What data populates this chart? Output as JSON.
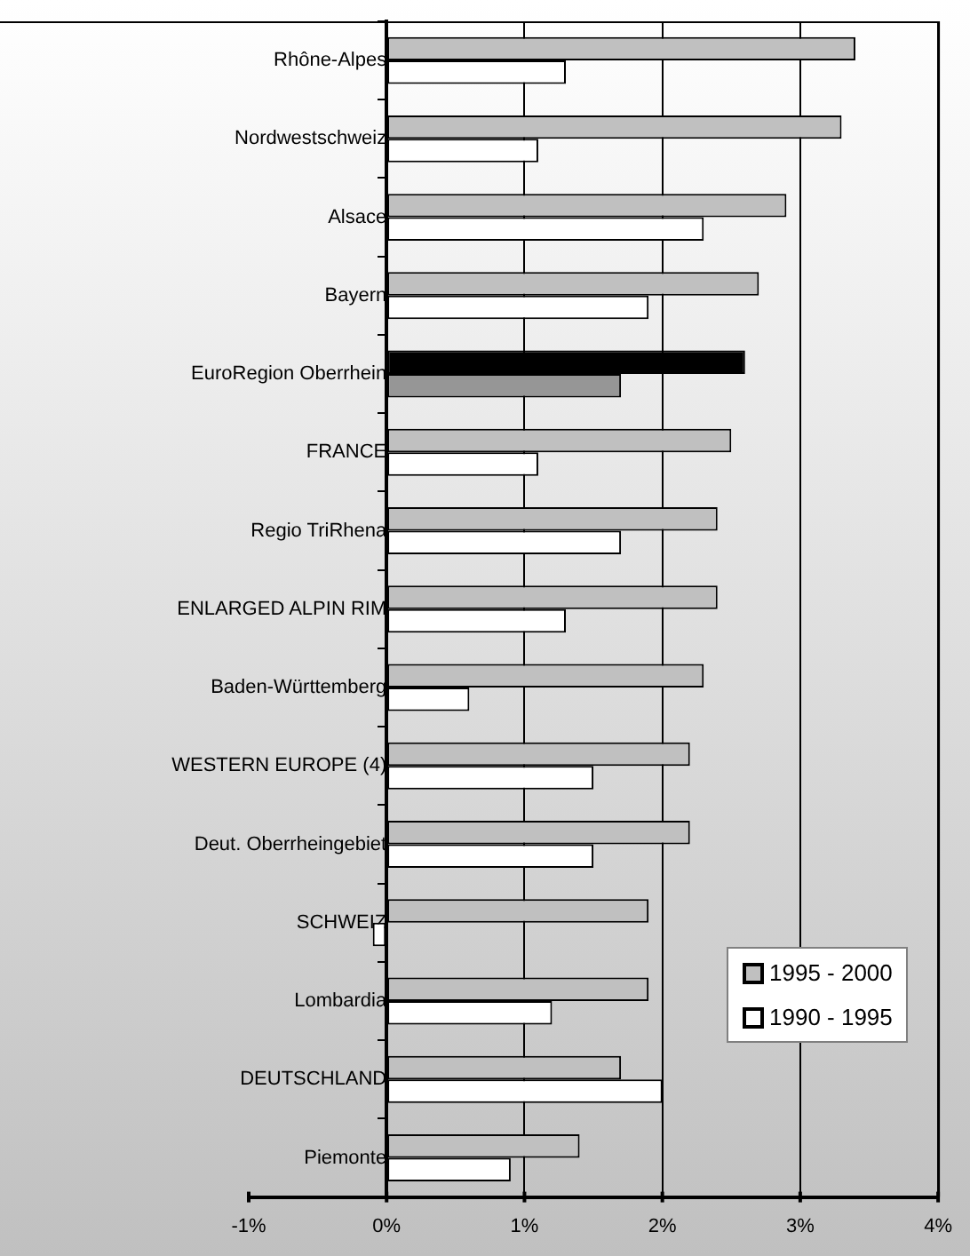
{
  "chart_data": {
    "type": "bar",
    "orientation": "horizontal",
    "categories": [
      "Rhône-Alpes",
      "Nordwestschweiz",
      "Alsace",
      "Bayern",
      "EuroRegion Oberrhein",
      "FRANCE",
      "Regio TriRhena",
      "ENLARGED ALPIN RIM",
      "Baden-Württemberg",
      "WESTERN EUROPE (4)",
      "Deut. Oberrheingebiet",
      "SCHWEIZ",
      "Lombardia",
      "DEUTSCHLAND",
      "Piemonte"
    ],
    "series": [
      {
        "name": "1995 - 2000",
        "color": "#c0c0c0",
        "colors": [
          "#c0c0c0",
          "#c0c0c0",
          "#c0c0c0",
          "#c0c0c0",
          "#000000",
          "#c0c0c0",
          "#c0c0c0",
          "#c0c0c0",
          "#c0c0c0",
          "#c0c0c0",
          "#c0c0c0",
          "#c0c0c0",
          "#c0c0c0",
          "#c0c0c0",
          "#c0c0c0"
        ],
        "values": [
          3.4,
          3.3,
          2.9,
          2.7,
          2.6,
          2.5,
          2.4,
          2.4,
          2.3,
          2.2,
          2.2,
          1.9,
          1.9,
          1.7,
          1.4
        ]
      },
      {
        "name": "1990 - 1995",
        "color": "#ffffff",
        "colors": [
          "#ffffff",
          "#ffffff",
          "#ffffff",
          "#ffffff",
          "#969696",
          "#ffffff",
          "#ffffff",
          "#ffffff",
          "#ffffff",
          "#ffffff",
          "#ffffff",
          "#ffffff",
          "#ffffff",
          "#ffffff",
          "#ffffff"
        ],
        "values": [
          1.3,
          1.1,
          2.3,
          1.9,
          1.7,
          1.1,
          1.7,
          1.3,
          0.6,
          1.5,
          1.5,
          -0.1,
          1.2,
          2.0,
          0.9
        ]
      }
    ],
    "xlim": [
      -1,
      4
    ],
    "xticks": [
      {
        "value": -1,
        "label": "-1%"
      },
      {
        "value": 0,
        "label": "0%"
      },
      {
        "value": 1,
        "label": "1%"
      },
      {
        "value": 2,
        "label": "2%"
      },
      {
        "value": 3,
        "label": "3%"
      },
      {
        "value": 4,
        "label": "4%"
      }
    ],
    "grid": "x",
    "legend": "right"
  }
}
